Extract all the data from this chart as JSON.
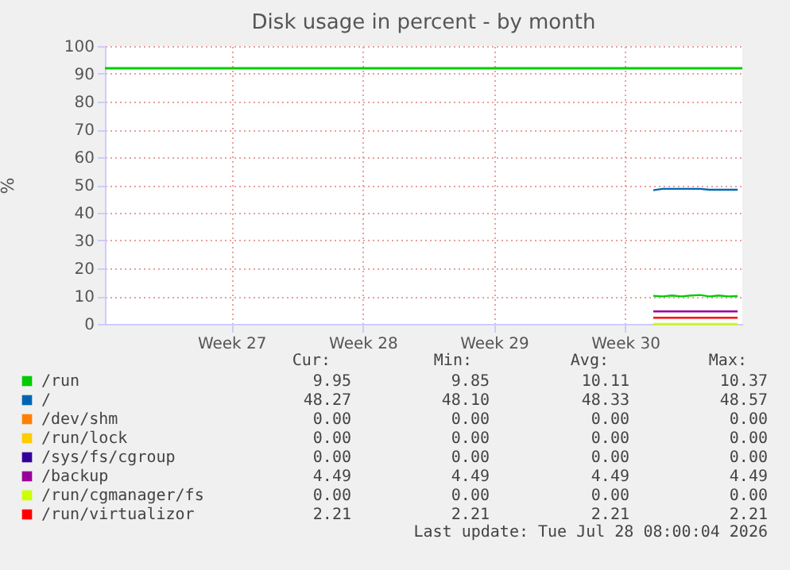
{
  "chart_data": {
    "type": "line",
    "title": "Disk usage in percent - by month",
    "ylabel": "%",
    "categories": [
      null,
      null,
      null,
      null,
      null,
      null,
      null,
      null,
      null,
      null,
      null,
      null,
      null,
      "Week 27",
      null,
      null,
      null,
      null,
      null,
      null,
      null,
      null,
      null,
      null,
      null,
      null,
      null,
      "Week 28",
      null,
      null,
      null,
      null,
      null,
      null,
      null,
      null,
      null,
      null,
      null,
      null,
      null,
      "Week 29",
      null,
      null,
      null,
      null,
      null,
      null,
      null,
      null,
      null,
      null,
      null,
      null,
      null,
      "Week 30",
      null,
      null,
      null,
      null,
      null,
      null,
      null,
      null,
      null,
      null,
      null,
      null
    ],
    "ylim": [
      0,
      100
    ],
    "yticks": [
      0,
      10,
      20,
      30,
      40,
      50,
      60,
      70,
      80,
      90,
      100
    ],
    "grid": true,
    "legend": "bottom",
    "marker": "none",
    "line_style": "solid",
    "ref_lines": [
      {
        "axis": "y",
        "value": 92,
        "color": "#00cc00"
      }
    ],
    "series": [
      {
        "name": "/run",
        "color": "#00cc00",
        "values": [
          null,
          null,
          null,
          null,
          null,
          null,
          null,
          null,
          null,
          null,
          null,
          null,
          null,
          null,
          null,
          null,
          null,
          null,
          null,
          null,
          null,
          null,
          null,
          null,
          null,
          null,
          null,
          null,
          null,
          null,
          null,
          null,
          null,
          null,
          null,
          null,
          null,
          null,
          null,
          null,
          null,
          null,
          null,
          null,
          null,
          null,
          null,
          null,
          null,
          null,
          null,
          null,
          null,
          null,
          null,
          null,
          null,
          null,
          10.1,
          9.9,
          10.2,
          9.9,
          10.2,
          10.4,
          9.9,
          10.2,
          9.9,
          10.0
        ]
      },
      {
        "name": "/",
        "color": "#0066b3",
        "values": [
          null,
          null,
          null,
          null,
          null,
          null,
          null,
          null,
          null,
          null,
          null,
          null,
          null,
          null,
          null,
          null,
          null,
          null,
          null,
          null,
          null,
          null,
          null,
          null,
          null,
          null,
          null,
          null,
          null,
          null,
          null,
          null,
          null,
          null,
          null,
          null,
          null,
          null,
          null,
          null,
          null,
          null,
          null,
          null,
          null,
          null,
          null,
          null,
          null,
          null,
          null,
          null,
          null,
          null,
          null,
          null,
          null,
          null,
          48.1,
          48.6,
          48.6,
          48.6,
          48.6,
          48.6,
          48.3,
          48.3,
          48.3,
          48.3
        ]
      },
      {
        "name": "/dev/shm",
        "color": "#ff8000",
        "values": [
          null,
          null,
          null,
          null,
          null,
          null,
          null,
          null,
          null,
          null,
          null,
          null,
          null,
          null,
          null,
          null,
          null,
          null,
          null,
          null,
          null,
          null,
          null,
          null,
          null,
          null,
          null,
          null,
          null,
          null,
          null,
          null,
          null,
          null,
          null,
          null,
          null,
          null,
          null,
          null,
          null,
          null,
          null,
          null,
          null,
          null,
          null,
          null,
          null,
          null,
          null,
          null,
          null,
          null,
          null,
          null,
          null,
          null,
          null,
          null,
          null,
          null,
          null,
          null,
          null,
          null,
          null,
          null
        ]
      },
      {
        "name": "/run/lock",
        "color": "#ffcc00",
        "values": [
          null,
          null,
          null,
          null,
          null,
          null,
          null,
          null,
          null,
          null,
          null,
          null,
          null,
          null,
          null,
          null,
          null,
          null,
          null,
          null,
          null,
          null,
          null,
          null,
          null,
          null,
          null,
          null,
          null,
          null,
          null,
          null,
          null,
          null,
          null,
          null,
          null,
          null,
          null,
          null,
          null,
          null,
          null,
          null,
          null,
          null,
          null,
          null,
          null,
          null,
          null,
          null,
          null,
          null,
          null,
          null,
          null,
          null,
          null,
          null,
          null,
          null,
          null,
          null,
          null,
          null,
          null,
          null
        ]
      },
      {
        "name": "/sys/fs/cgroup",
        "color": "#330099",
        "values": [
          null,
          null,
          null,
          null,
          null,
          null,
          null,
          null,
          null,
          null,
          null,
          null,
          null,
          null,
          null,
          null,
          null,
          null,
          null,
          null,
          null,
          null,
          null,
          null,
          null,
          null,
          null,
          null,
          null,
          null,
          null,
          null,
          null,
          null,
          null,
          null,
          null,
          null,
          null,
          null,
          null,
          null,
          null,
          null,
          null,
          null,
          null,
          null,
          null,
          null,
          null,
          null,
          null,
          null,
          null,
          null,
          null,
          null,
          null,
          null,
          null,
          null,
          null,
          null,
          null,
          null,
          null,
          null
        ]
      },
      {
        "name": "/backup",
        "color": "#990099",
        "values": [
          null,
          null,
          null,
          null,
          null,
          null,
          null,
          null,
          null,
          null,
          null,
          null,
          null,
          null,
          null,
          null,
          null,
          null,
          null,
          null,
          null,
          null,
          null,
          null,
          null,
          null,
          null,
          null,
          null,
          null,
          null,
          null,
          null,
          null,
          null,
          null,
          null,
          null,
          null,
          null,
          null,
          null,
          null,
          null,
          null,
          null,
          null,
          null,
          null,
          null,
          null,
          null,
          null,
          null,
          null,
          null,
          null,
          null,
          4.5,
          4.5,
          4.5,
          4.5,
          4.5,
          4.5,
          4.5,
          4.5,
          4.5,
          4.5
        ]
      },
      {
        "name": "/run/cgmanager/fs",
        "color": "#ccff00",
        "values": [
          null,
          null,
          null,
          null,
          null,
          null,
          null,
          null,
          null,
          null,
          null,
          null,
          null,
          null,
          null,
          null,
          null,
          null,
          null,
          null,
          null,
          null,
          null,
          null,
          null,
          null,
          null,
          null,
          null,
          null,
          null,
          null,
          null,
          null,
          null,
          null,
          null,
          null,
          null,
          null,
          null,
          null,
          null,
          null,
          null,
          null,
          null,
          null,
          null,
          null,
          null,
          null,
          null,
          null,
          null,
          null,
          null,
          null,
          0,
          0,
          0,
          0,
          0,
          0,
          0,
          0,
          0,
          0
        ]
      },
      {
        "name": "/run/virtualizor",
        "color": "#ff0000",
        "values": [
          null,
          null,
          null,
          null,
          null,
          null,
          null,
          null,
          null,
          null,
          null,
          null,
          null,
          null,
          null,
          null,
          null,
          null,
          null,
          null,
          null,
          null,
          null,
          null,
          null,
          null,
          null,
          null,
          null,
          null,
          null,
          null,
          null,
          null,
          null,
          null,
          null,
          null,
          null,
          null,
          null,
          null,
          null,
          null,
          null,
          null,
          null,
          null,
          null,
          null,
          null,
          null,
          null,
          null,
          null,
          null,
          null,
          null,
          2.2,
          2.2,
          2.2,
          2.2,
          2.2,
          2.2,
          2.2,
          2.2,
          2.2,
          2.2
        ]
      }
    ],
    "annotations": [
      "Cur:",
      "Min:",
      "Avg:",
      "Max:",
      "9.95",
      "9.85",
      "10.11",
      "10.37",
      "48.27",
      "48.10",
      "48.33",
      "48.57",
      "0.00",
      "0.00",
      "0.00",
      "0.00",
      "0.00",
      "0.00",
      "0.00",
      "0.00",
      "0.00",
      "0.00",
      "0.00",
      "0.00",
      "4.49",
      "4.49",
      "4.49",
      "4.49",
      "0.00",
      "0.00",
      "0.00",
      "0.00",
      "2.21",
      "2.21",
      "2.21",
      "2.21",
      "Last update: Tue Jul 28 08:00:04 2026"
    ]
  }
}
